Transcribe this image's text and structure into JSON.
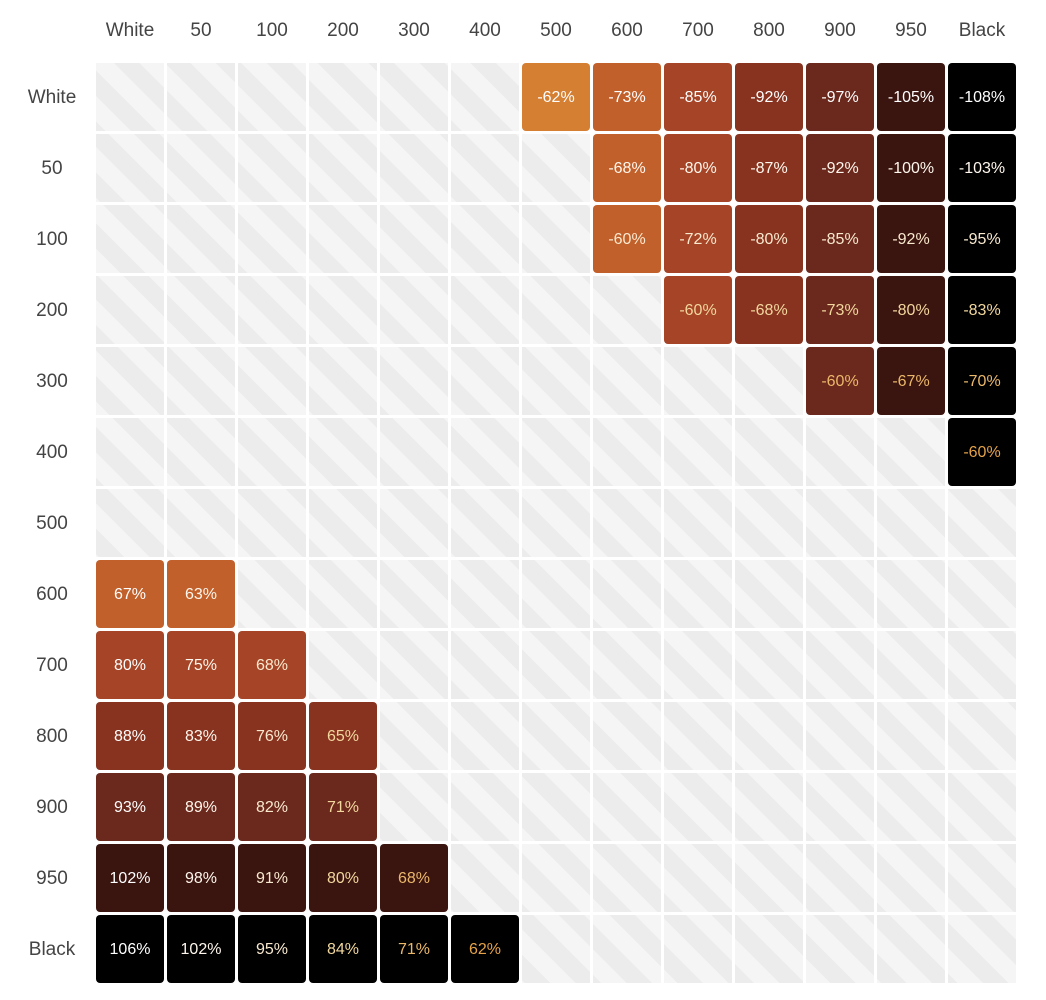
{
  "chart_data": {
    "type": "heatmap",
    "title": "",
    "columns": [
      "White",
      "50",
      "100",
      "200",
      "300",
      "400",
      "500",
      "600",
      "700",
      "800",
      "900",
      "950",
      "Black"
    ],
    "rows": [
      "White",
      "50",
      "100",
      "200",
      "300",
      "400",
      "500",
      "600",
      "700",
      "800",
      "900",
      "950",
      "Black"
    ],
    "shades": {
      "White": "#ffffff",
      "50": "#fff7ed",
      "100": "#f9e9cf",
      "200": "#f2d79e",
      "300": "#ebb86a",
      "400": "#e5a248",
      "500": "#d57f33",
      "600": "#c2602b",
      "700": "#a54426",
      "800": "#87331f",
      "900": "#6b281c",
      "950": "#3a140e",
      "Black": "#000000"
    },
    "empty_cell_color": "#f2f2f2",
    "empty_cell_pattern": "diagonal-stripes",
    "values": [
      [
        null,
        null,
        null,
        null,
        null,
        null,
        -62,
        -73,
        -85,
        -92,
        -97,
        -105,
        -108
      ],
      [
        null,
        null,
        null,
        null,
        null,
        null,
        null,
        -68,
        -80,
        -87,
        -92,
        -100,
        -103
      ],
      [
        null,
        null,
        null,
        null,
        null,
        null,
        null,
        -60,
        -72,
        -80,
        -85,
        -92,
        -95
      ],
      [
        null,
        null,
        null,
        null,
        null,
        null,
        null,
        null,
        -60,
        -68,
        -73,
        -80,
        -83
      ],
      [
        null,
        null,
        null,
        null,
        null,
        null,
        null,
        null,
        null,
        null,
        -60,
        -67,
        -70
      ],
      [
        null,
        null,
        null,
        null,
        null,
        null,
        null,
        null,
        null,
        null,
        null,
        null,
        -60
      ],
      [
        null,
        null,
        null,
        null,
        null,
        null,
        null,
        null,
        null,
        null,
        null,
        null,
        null
      ],
      [
        67,
        63,
        null,
        null,
        null,
        null,
        null,
        null,
        null,
        null,
        null,
        null,
        null
      ],
      [
        80,
        75,
        68,
        null,
        null,
        null,
        null,
        null,
        null,
        null,
        null,
        null,
        null
      ],
      [
        88,
        83,
        76,
        65,
        null,
        null,
        null,
        null,
        null,
        null,
        null,
        null,
        null
      ],
      [
        93,
        89,
        82,
        71,
        null,
        null,
        null,
        null,
        null,
        null,
        null,
        null,
        null
      ],
      [
        102,
        98,
        91,
        80,
        68,
        null,
        null,
        null,
        null,
        null,
        null,
        null,
        null
      ],
      [
        106,
        102,
        95,
        84,
        71,
        62,
        null,
        null,
        null,
        null,
        null,
        null,
        null
      ]
    ],
    "labels": [
      [
        null,
        null,
        null,
        null,
        null,
        null,
        "-62%",
        "-73%",
        "-85%",
        "-92%",
        "-97%",
        "-105%",
        "-108%"
      ],
      [
        null,
        null,
        null,
        null,
        null,
        null,
        null,
        "-68%",
        "-80%",
        "-87%",
        "-92%",
        "-100%",
        "-103%"
      ],
      [
        null,
        null,
        null,
        null,
        null,
        null,
        null,
        "-60%",
        "-72%",
        "-80%",
        "-85%",
        "-92%",
        "-95%"
      ],
      [
        null,
        null,
        null,
        null,
        null,
        null,
        null,
        null,
        "-60%",
        "-68%",
        "-73%",
        "-80%",
        "-83%"
      ],
      [
        null,
        null,
        null,
        null,
        null,
        null,
        null,
        null,
        null,
        null,
        "-60%",
        "-67%",
        "-70%"
      ],
      [
        null,
        null,
        null,
        null,
        null,
        null,
        null,
        null,
        null,
        null,
        null,
        null,
        "-60%"
      ],
      [
        null,
        null,
        null,
        null,
        null,
        null,
        null,
        null,
        null,
        null,
        null,
        null,
        null
      ],
      [
        "67%",
        "63%",
        null,
        null,
        null,
        null,
        null,
        null,
        null,
        null,
        null,
        null,
        null
      ],
      [
        "80%",
        "75%",
        "68%",
        null,
        null,
        null,
        null,
        null,
        null,
        null,
        null,
        null,
        null
      ],
      [
        "88%",
        "83%",
        "76%",
        "65%",
        null,
        null,
        null,
        null,
        null,
        null,
        null,
        null,
        null
      ],
      [
        "93%",
        "89%",
        "82%",
        "71%",
        null,
        null,
        null,
        null,
        null,
        null,
        null,
        null,
        null
      ],
      [
        "102%",
        "98%",
        "91%",
        "80%",
        "68%",
        null,
        null,
        null,
        null,
        null,
        null,
        null,
        null
      ],
      [
        "106%",
        "102%",
        "95%",
        "84%",
        "71%",
        "62%",
        null,
        null,
        null,
        null,
        null,
        null,
        null
      ]
    ]
  }
}
